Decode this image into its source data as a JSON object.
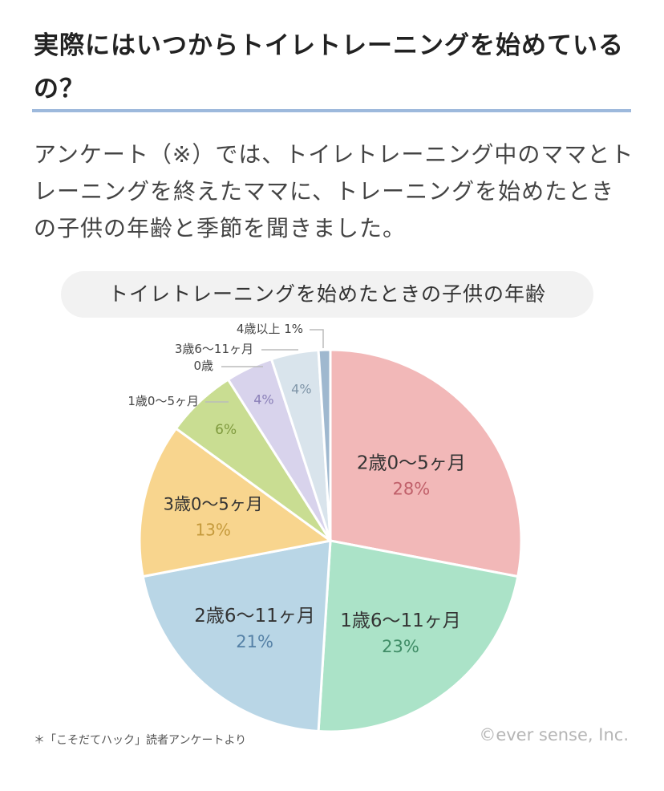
{
  "article": {
    "heading": "実際にはいつからトイレトレーニングを始めているの？",
    "intro": "アンケート（※）では、トイレトレーニング中のママとトレーニングを終えたママに、トレーニングを始めたときの子供の年齢と季節を聞きました。"
  },
  "chart_data": {
    "type": "pie",
    "title": "トイレトレーニングを始めたときの子供の年齢",
    "start": "12 o'clock, clockwise",
    "slices": [
      {
        "label": "2歳0〜5ヶ月",
        "value": 28,
        "value_label": "28%",
        "color": "#f2b8b8",
        "text_color": "#c0606a"
      },
      {
        "label": "1歳6〜11ヶ月",
        "value": 23,
        "value_label": "23%",
        "color": "#abe3c8",
        "text_color": "#3f8c66"
      },
      {
        "label": "2歳6〜11ヶ月",
        "value": 21,
        "value_label": "21%",
        "color": "#b9d6e6",
        "text_color": "#5581a6"
      },
      {
        "label": "3歳0〜5ヶ月",
        "value": 13,
        "value_label": "13%",
        "color": "#f8d58e",
        "text_color": "#c59a3c"
      },
      {
        "label": "1歳0〜5ヶ月",
        "value": 6,
        "value_label": "6%",
        "color": "#c9dd92",
        "text_color": "#7f9a3e"
      },
      {
        "label": "0歳",
        "value": 4,
        "value_label": "4%",
        "color": "#d8d3ec",
        "text_color": "#8a7fb8"
      },
      {
        "label": "3歳6〜11ヶ月",
        "value": 4,
        "value_label": "4%",
        "color": "#d9e4ec",
        "text_color": "#7f95a8"
      },
      {
        "label": "4歳以上",
        "value": 1,
        "value_label": "1%",
        "color": "#9fb8cf",
        "text_color": "#444444"
      }
    ]
  },
  "footnote": "＊「こそだてハック」読者アンケートより",
  "copyright": "©ever sense, Inc."
}
